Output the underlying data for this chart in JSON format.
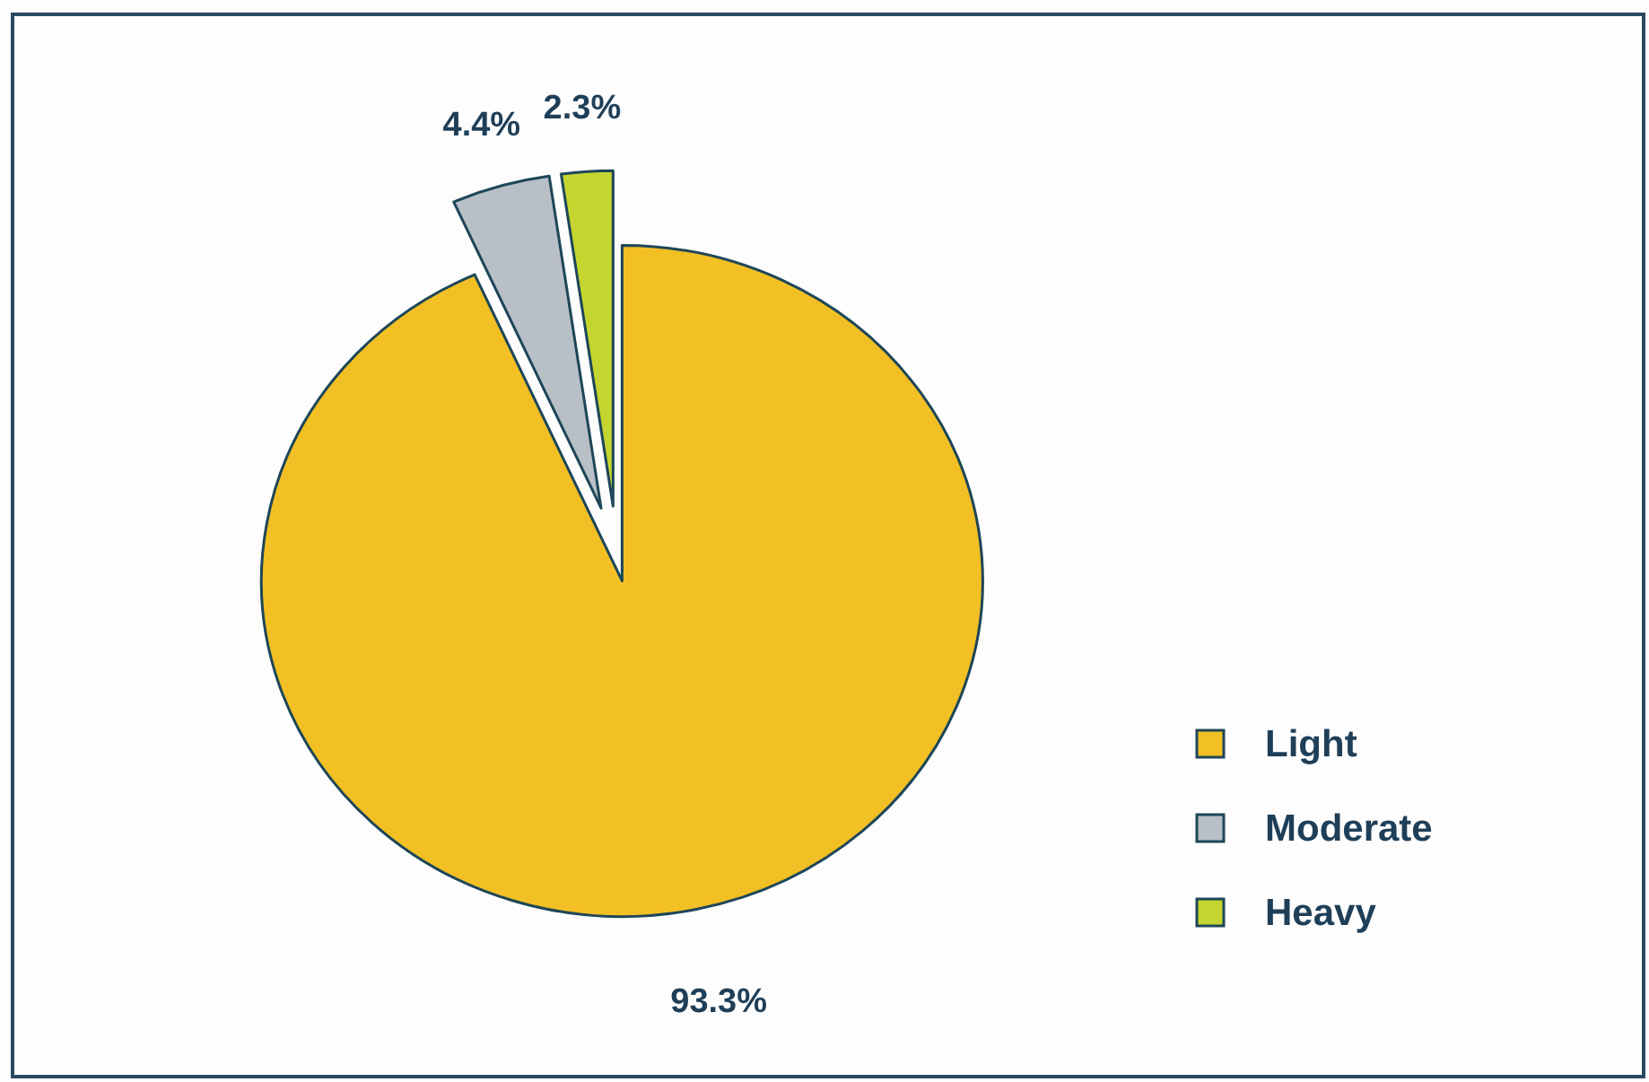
{
  "chart_data": {
    "type": "pie",
    "categories": [
      "Light",
      "Moderate",
      "Heavy"
    ],
    "values": [
      93.3,
      4.4,
      2.3
    ],
    "colors": [
      "#f2c024",
      "#b9bfc6",
      "#c5d52f"
    ],
    "value_labels": [
      "93.3%",
      "4.4%",
      "2.3%"
    ],
    "legend": "bottom right"
  }
}
